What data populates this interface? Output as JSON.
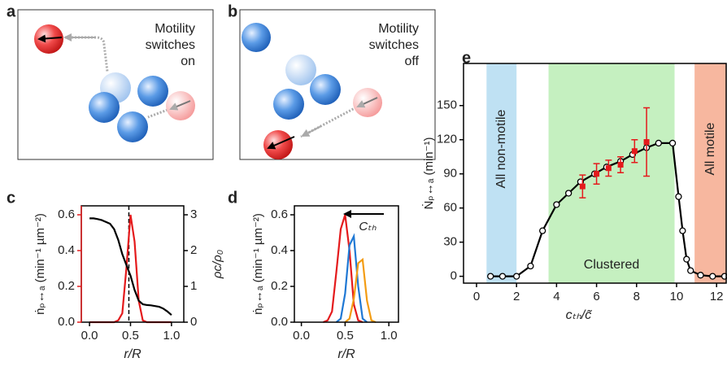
{
  "panel_labels": [
    "a",
    "b",
    "c",
    "d",
    "e"
  ],
  "diagrams": {
    "a": {
      "text": [
        "Motility",
        "switches",
        "on"
      ]
    },
    "b": {
      "text": [
        "Motility",
        "switches",
        "off"
      ]
    }
  },
  "chart_data": [
    {
      "type": "line",
      "xlabel": "r/R",
      "ylabel": "ṅₚ↔ₐ (min⁻¹ µm⁻²)",
      "ylabel_color": "#e41a1c",
      "y2label": "ρc/ρ₀",
      "xlim": [
        -0.1,
        1.15
      ],
      "xticks": [
        {
          "value": 0,
          "label": "0.0"
        },
        0.5,
        {
          "value": 1,
          "label": "1.0"
        }
      ],
      "ylim": [
        0,
        0.65
      ],
      "yticks": [
        {
          "value": 0,
          "label": "0.0"
        },
        0.2,
        0.4,
        0.6
      ],
      "y2lim": [
        0,
        3.25
      ],
      "y2ticks": [
        0,
        1,
        2,
        3
      ],
      "reference_line_x": 0.48,
      "series": [
        {
          "color": "#e41a1c",
          "x": [
            0,
            0.05,
            0.1,
            0.15,
            0.2,
            0.25,
            0.3,
            0.35,
            0.4,
            0.45,
            0.5,
            0.55,
            0.6,
            0.65,
            0.7,
            0.75,
            0.8,
            0.85,
            0.9,
            0.95,
            1.0
          ],
          "values": [
            0,
            0,
            0,
            0,
            0,
            0,
            0,
            0.01,
            0.05,
            0.3,
            0.6,
            0.45,
            0.12,
            0.01,
            0,
            0,
            0,
            0,
            0,
            0,
            0
          ]
        },
        {
          "color": "#000000",
          "axis": "y2",
          "x": [
            0,
            0.05,
            0.1,
            0.15,
            0.2,
            0.25,
            0.3,
            0.35,
            0.4,
            0.45,
            0.5,
            0.55,
            0.6,
            0.65,
            0.7,
            0.75,
            0.8,
            0.85,
            0.9,
            0.95,
            1.0
          ],
          "values": [
            2.9,
            2.9,
            2.88,
            2.85,
            2.8,
            2.75,
            2.6,
            2.3,
            1.9,
            1.6,
            1.3,
            0.9,
            0.6,
            0.5,
            0.48,
            0.47,
            0.45,
            0.43,
            0.38,
            0.3,
            0.2
          ]
        }
      ]
    },
    {
      "type": "line",
      "xlabel": "r/R",
      "ylabel": "ṅₚ↔ₐ (min⁻¹ µm⁻²)",
      "arrow_label": "Cₜₕ",
      "xlim": [
        -0.08,
        1.11
      ],
      "xticks": [
        {
          "value": 0,
          "label": "0.0"
        },
        0.5,
        {
          "value": 1,
          "label": "1.0"
        }
      ],
      "ylim": [
        0,
        0.65
      ],
      "yticks": [
        {
          "value": 0,
          "label": "0.0"
        },
        0.2,
        0.4,
        0.6
      ],
      "series": [
        {
          "color": "#e41a1c",
          "x": [
            0.25,
            0.3,
            0.35,
            0.4,
            0.45,
            0.5,
            0.55,
            0.6,
            0.65,
            0.7
          ],
          "values": [
            0,
            0.01,
            0.06,
            0.28,
            0.52,
            0.6,
            0.4,
            0.1,
            0.01,
            0
          ]
        },
        {
          "color": "#1f78d4",
          "x": [
            0.4,
            0.45,
            0.5,
            0.55,
            0.6,
            0.65,
            0.7,
            0.75
          ],
          "values": [
            0,
            0.02,
            0.16,
            0.43,
            0.48,
            0.2,
            0.02,
            0
          ]
        },
        {
          "color": "#f39c12",
          "x": [
            0.5,
            0.55,
            0.6,
            0.65,
            0.7,
            0.75,
            0.8,
            0.85
          ],
          "values": [
            0,
            0.02,
            0.13,
            0.33,
            0.35,
            0.12,
            0.01,
            0
          ]
        }
      ]
    },
    {
      "type": "line",
      "xlabel": "cₜₕ/c̃",
      "ylabel": "Ṅₚ↔ₐ (min⁻¹)",
      "xlim": [
        -0.65,
        12.48
      ],
      "xticks": [
        0,
        2,
        4,
        6,
        8,
        10,
        12
      ],
      "ylim": [
        -6,
        187
      ],
      "yticks": [
        0,
        30,
        60,
        90,
        120,
        150
      ],
      "regions": [
        {
          "label": "All non-motile",
          "from": 0.5,
          "to": 2.0,
          "color": "#bfe1f3",
          "text_color": "#3a73d6",
          "vertical": true
        },
        {
          "label": "Clustered",
          "from": 3.6,
          "to": 9.9,
          "color": "#c5f0c0",
          "text_color": "#2ea12e",
          "vertical": false
        },
        {
          "label": "All motile",
          "from": 10.9,
          "to": 12.48,
          "color": "#f7b79f",
          "text_color": "#ffffff",
          "vertical": true
        }
      ],
      "series": [
        {
          "color": "#000000",
          "marker": "open-circle",
          "x": [
            0.7,
            1.3,
            2.0,
            2.7,
            3.3,
            4.0,
            4.6,
            5.2,
            5.9,
            6.5,
            7.2,
            7.8,
            8.5,
            9.1,
            9.8,
            10.1,
            10.3,
            10.5,
            10.7,
            11.2,
            11.8,
            12.4
          ],
          "values": [
            0,
            0,
            0,
            9,
            40,
            63,
            73,
            83,
            90,
            96,
            101,
            107,
            113,
            117,
            117,
            70,
            40,
            15,
            5,
            1,
            0,
            0
          ]
        },
        {
          "color": "#e41a1c",
          "marker": "square",
          "x": [
            5.3,
            6.0,
            6.6,
            7.2,
            7.9,
            8.5
          ],
          "values": [
            79,
            90,
            95,
            98,
            110,
            118
          ],
          "errors": [
            10,
            9,
            7,
            7,
            10,
            30
          ]
        }
      ]
    }
  ]
}
